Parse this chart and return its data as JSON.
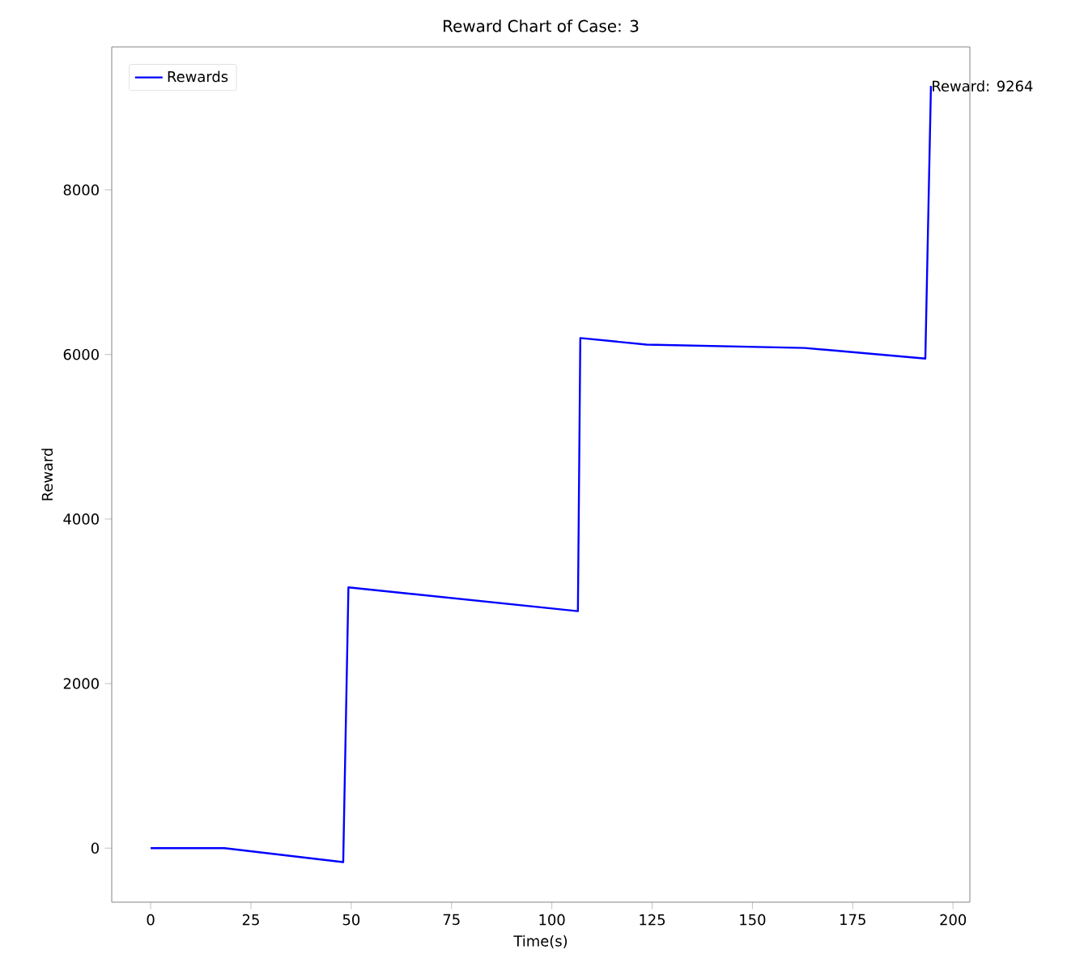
{
  "chart_data": {
    "type": "line",
    "title": "Reward Chart of Case: 3",
    "xlabel": "Time(s)",
    "ylabel": "Reward",
    "x": [
      0,
      18.4,
      48.0,
      49.3,
      106.5,
      107.1,
      123.6,
      162.9,
      193.1,
      194.5
    ],
    "series": [
      {
        "name": "Rewards",
        "color": "#0000ff",
        "values": [
          0,
          0,
          -170,
          3170,
          2880,
          6200,
          6120,
          6080,
          5950,
          9264
        ]
      }
    ],
    "annotations": [
      {
        "text": "Reward: 9264",
        "x": 194.5,
        "y": 9264
      }
    ],
    "xlim": [
      -9.7,
      204.2
    ],
    "ylim": [
      -657,
      9738
    ],
    "xticks": [
      0,
      25,
      50,
      75,
      100,
      125,
      150,
      175,
      200
    ],
    "yticks": [
      0,
      2000,
      4000,
      6000,
      8000
    ],
    "legend": "top left",
    "grid": false
  }
}
